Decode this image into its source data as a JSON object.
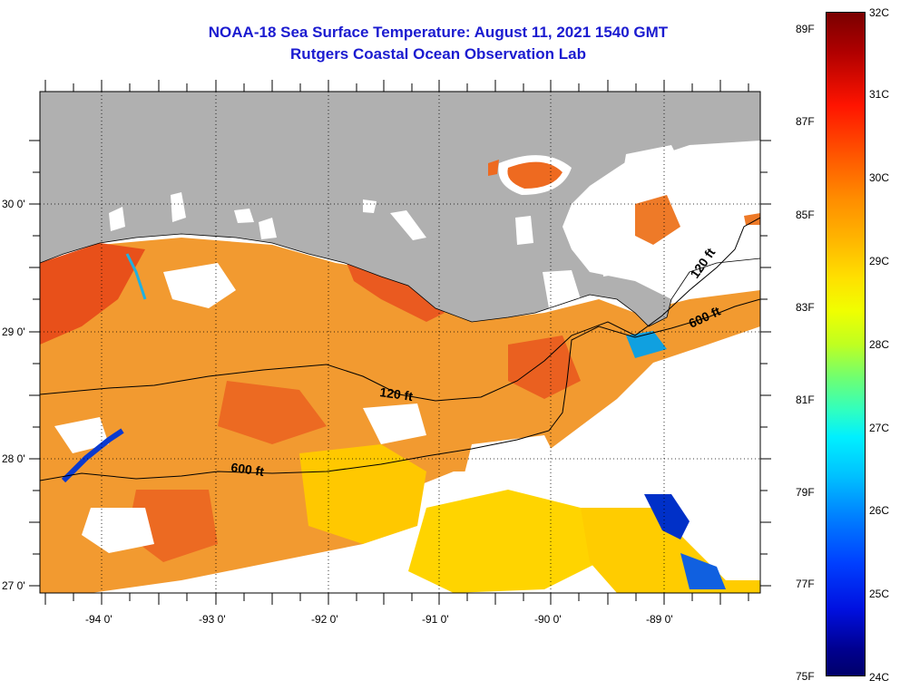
{
  "header": {
    "title": "NOAA-18 Sea Surface Temperature:  August 11, 2021 1540 GMT",
    "subtitle": "Rutgers Coastal Ocean Observation Lab"
  },
  "axes": {
    "lat_labels": [
      "30 0'",
      "29 0'",
      "28 0'",
      "27 0'"
    ],
    "lon_labels": [
      "-94 0'",
      "-93 0'",
      "-92 0'",
      "-91 0'",
      "-90 0'",
      "-89 0'"
    ]
  },
  "contours": {
    "label_120": "120 ft",
    "label_600": "600 ft"
  },
  "colorbar": {
    "fahrenheit": [
      "89F",
      "87F",
      "85F",
      "83F",
      "81F",
      "79F",
      "77F",
      "75F"
    ],
    "celsius": [
      "32C",
      "31C",
      "30C",
      "29C",
      "28C",
      "27C",
      "26C",
      "25C",
      "24C"
    ]
  },
  "colors": {
    "land": "#b0b0b0",
    "title": "#1b1bd0",
    "warm": "#f07020",
    "mid": "#ffb000",
    "cool": "#0040d0"
  }
}
